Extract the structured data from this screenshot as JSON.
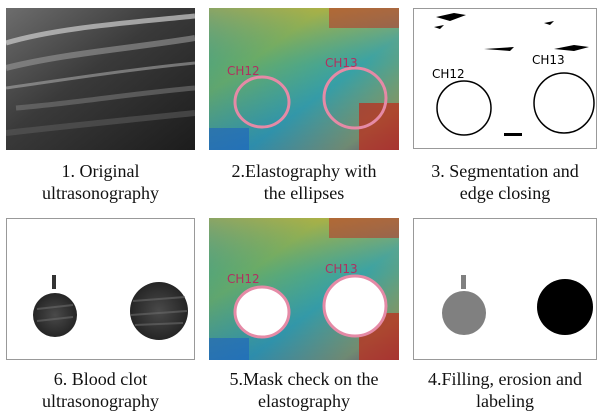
{
  "panels": [
    {
      "id": "p1",
      "caption": [
        "1. Original",
        "ultrasonography"
      ]
    },
    {
      "id": "p2",
      "caption": [
        "2.Elastography with",
        "the ellipses"
      ],
      "labels": [
        "CH12",
        "CH13"
      ]
    },
    {
      "id": "p3",
      "caption": [
        "3. Segmentation and",
        "edge closing"
      ],
      "labels": [
        "CH12",
        "CH13"
      ]
    },
    {
      "id": "p6",
      "caption": [
        "6. Blood clot",
        "ultrasonography"
      ]
    },
    {
      "id": "p5",
      "caption": [
        "5.Mask check on the",
        "elastography"
      ],
      "labels": [
        "CH12",
        "CH13"
      ]
    },
    {
      "id": "p4",
      "caption": [
        "4.Filling, erosion and",
        "labeling"
      ]
    }
  ],
  "colors": {
    "ellipse": "#e58aa6",
    "ultrasound_dark": "#2a2a2a",
    "label_gray": "#808080",
    "label_black": "#000000"
  }
}
